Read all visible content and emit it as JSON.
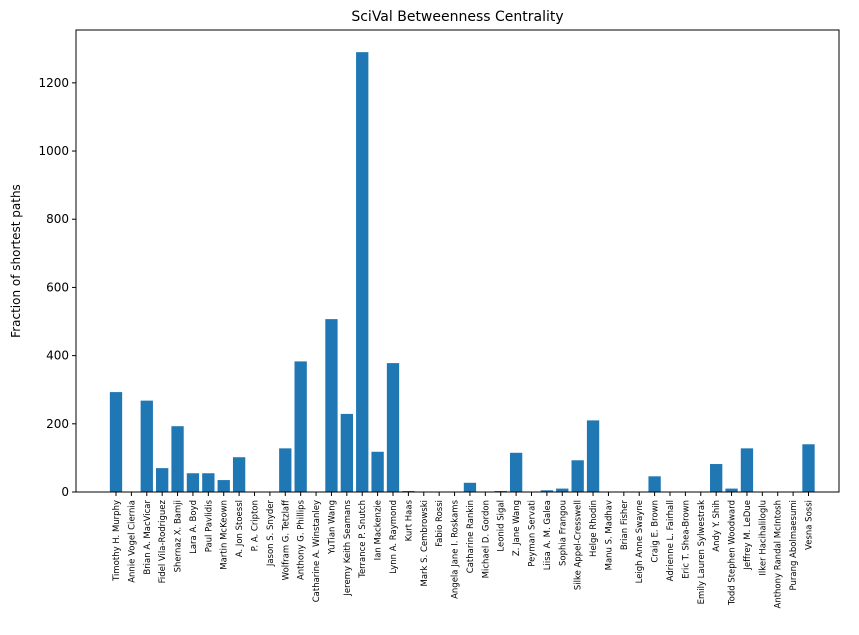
{
  "chart_data": {
    "type": "bar",
    "title": "SciVal Betweenness Centrality",
    "xlabel": "",
    "ylabel": "Fraction of shortest paths",
    "ylim": [
      0,
      1355
    ],
    "yticks": [
      0,
      200,
      400,
      600,
      800,
      1000,
      1200
    ],
    "grid": false,
    "bar_color": "#1f77b4",
    "categories": [
      "Timothy H. Murphy",
      "Annie Vogel Ciernia",
      "Brian A. MacVicar",
      "Fidel Vila-Rodriguez",
      "Shernaz X. Bamji",
      "Lara A. Boyd",
      "Paul Pavlidis",
      "Martin McKeown",
      "A. Jon Stoessl",
      "P. A. Cripton",
      "Jason S. Snyder",
      "Wolfram G. Tetzlaff",
      "Anthony G. Phillips",
      "Catharine A. Winstanley",
      "YuTian Wang",
      "Jeremy Keith Seamans",
      "Terrance P. Snutch",
      "Ian Mackenzie",
      "Lynn A. Raymond",
      "Kurt Haas",
      "Mark S. Cembrowski",
      "Fabio Rossi",
      "Angela Jane I. Roskams",
      "Catharine Rankin",
      "Michael D. Gordon",
      "Leonid Sigal",
      "Z. Jane Wang",
      "Peyman Servati",
      "Liisa A. M. Galea",
      "Sophia Frangou",
      "Silke Appel-Cresswell",
      "Helge Rhodin",
      "Manu S. Madhav",
      "Brian Fisher",
      "Leigh Anne Swayne",
      "Craig E. Brown",
      "Adrienne L. Fairhall",
      "Eric T. Shea-Brown",
      "Emily Lauren Sylwestrak",
      "Andy Y. Shih",
      "Todd Stephen Woodward",
      "Jeffrey M. LeDue",
      "Ilker Hacihaliloglu",
      "Anthony Randal McIntosh",
      "Purang Abolmaesumi",
      "Vesna Sossi"
    ],
    "values": [
      293,
      0,
      268,
      70,
      193,
      55,
      55,
      35,
      102,
      0,
      0,
      128,
      383,
      0,
      507,
      229,
      1290,
      118,
      378,
      3,
      0,
      0,
      0,
      27,
      0,
      3,
      115,
      0,
      5,
      10,
      93,
      210,
      0,
      0,
      0,
      46,
      0,
      0,
      0,
      82,
      10,
      128,
      0,
      0,
      0,
      140
    ]
  }
}
